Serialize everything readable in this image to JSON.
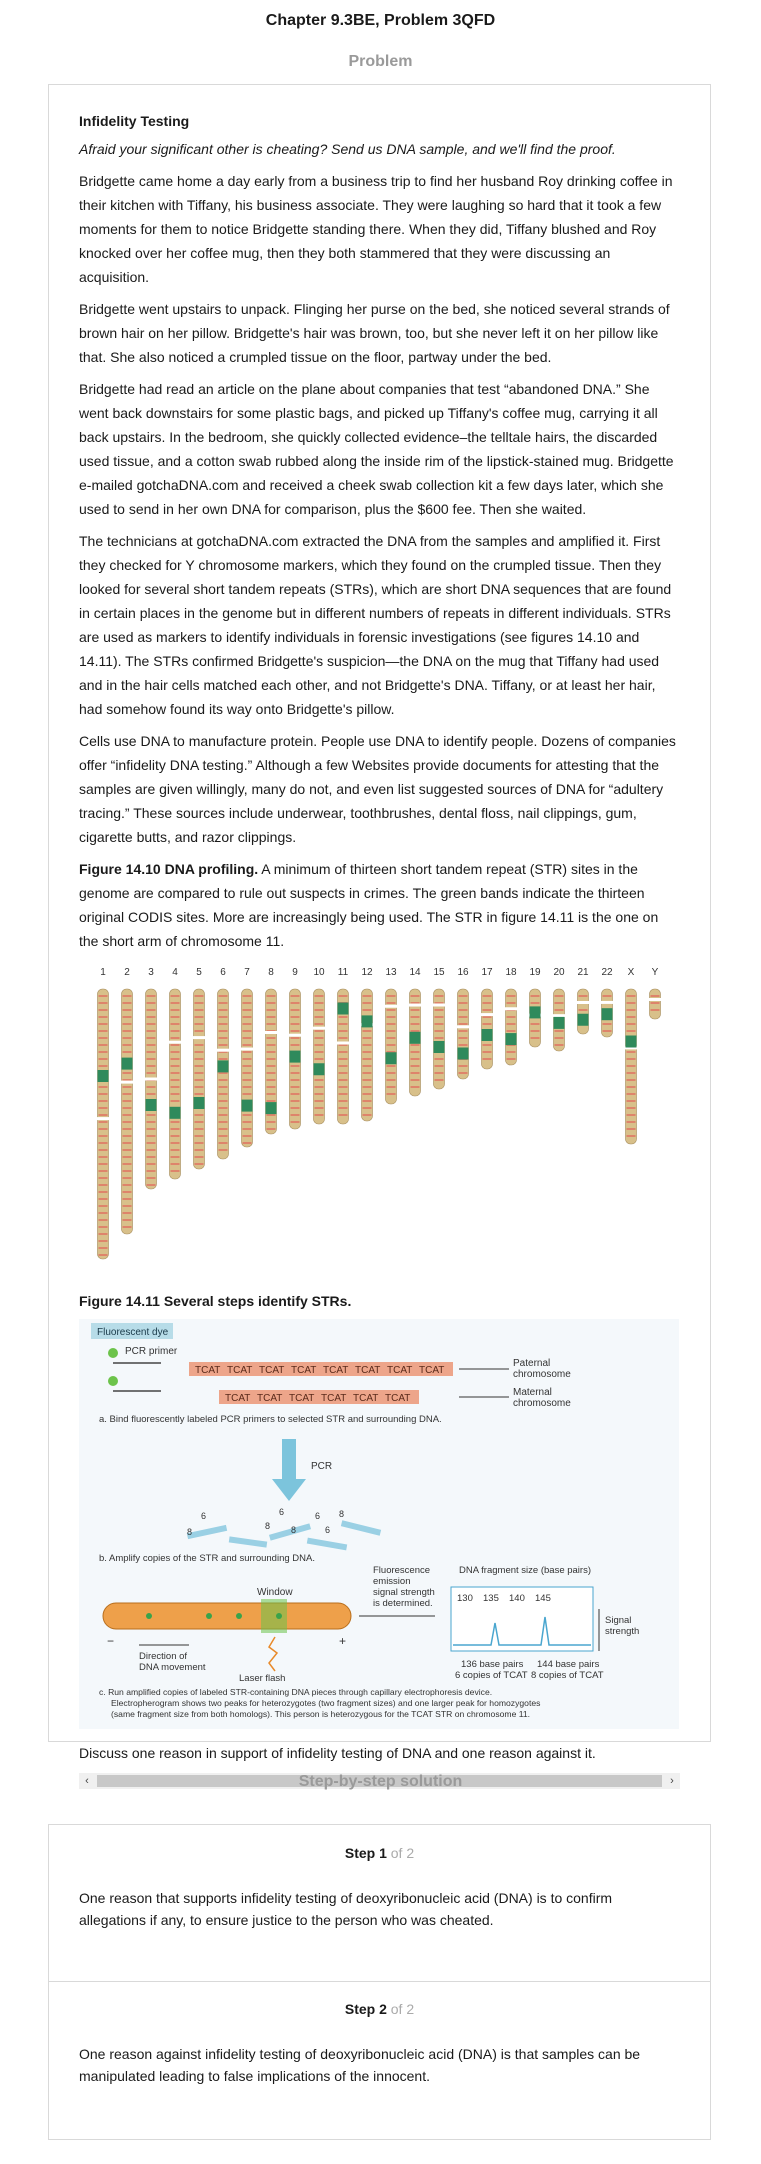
{
  "page_title": "Chapter 9.3BE, Problem 3QFD",
  "problem_label": "Problem",
  "problem": {
    "heading": "Infidelity Testing",
    "tagline": "Afraid your significant other is cheating? Send us DNA sample, and we'll find the proof.",
    "paragraphs": [
      "Bridgette came home a day early from a business trip to find her husband Roy drinking coffee in their kitchen with Tiffany, his business associate. They were laughing so hard that it took a few moments for them to notice Bridgette standing there. When they did, Tiffany blushed and Roy knocked over her coffee mug, then they both stammered that they were discussing an acquisition.",
      "Bridgette went upstairs to unpack. Flinging her purse on the bed, she noticed several strands of brown hair on her pillow. Bridgette's hair was brown, too, but she never left it on her pillow like that. She also noticed a crumpled tissue on the floor, partway under the bed.",
      "Bridgette had read an article on the plane about companies that test “abandoned DNA.” She went back downstairs for some plastic bags, and picked up Tiffany's coffee mug, carrying it all back upstairs. In the bedroom, she quickly collected evidence–the telltale hairs, the discarded used tissue, and a cotton swab rubbed along the inside rim of the lipstick-stained mug. Bridgette e-mailed gotchaDNA.com and received a cheek swab collection kit a few days later, which she used to send in her own DNA for comparison, plus the $600 fee. Then she waited.",
      "The technicians at gotchaDNA.com extracted the DNA from the samples and amplified it. First they checked for Y chromosome markers, which they found on the crumpled tissue. Then they looked for several short tandem repeats (STRs), which are short DNA sequences that are found in certain places in the genome but in different numbers of repeats in different individuals. STRs are used as markers to identify individuals in forensic investigations (see figures 14.10 and 14.11). The STRs confirmed Bridgette's suspicion—the DNA on the mug that Tiffany had used and in the hair cells matched each other, and not Bridgette's DNA. Tiffany, or at least her hair, had somehow found its way onto Bridgette's pillow.",
      "Cells use DNA to manufacture protein. People use DNA to identify people. Dozens of companies offer “infidelity DNA testing.” Although a few Websites provide documents for attesting that the samples are given willingly, many do not, and even list suggested sources of DNA for “adultery tracing.” These sources include underwear, toothbrushes, dental floss, nail clippings, gum, cigarette butts, and razor clippings."
    ],
    "fig10_label": "Figure 14.10 DNA profiling.",
    "fig10_text": " A minimum of thirteen short tandem repeat (STR) sites in the genome are compared to rule out suspects in crimes. The green bands indicate the thirteen original CODIS sites. More are increasingly being used. The STR in figure 14.11 is the one on the short arm of chromosome 11.",
    "chromosome_labels": [
      "1",
      "2",
      "3",
      "4",
      "5",
      "6",
      "7",
      "8",
      "9",
      "10",
      "11",
      "12",
      "13",
      "14",
      "15",
      "16",
      "17",
      "18",
      "19",
      "20",
      "21",
      "22",
      "X",
      "Y"
    ],
    "fig11_caption": "Figure 14.11 Several steps identify STRs.",
    "str_figure": {
      "dye_label": "Fluorescent dye",
      "primer_label": "PCR primer",
      "paternal_repeats": [
        "TCAT",
        "TCAT",
        "TCAT",
        "TCAT",
        "TCAT",
        "TCAT",
        "TCAT",
        "TCAT"
      ],
      "maternal_repeats": [
        "TCAT",
        "TCAT",
        "TCAT",
        "TCAT",
        "TCAT",
        "TCAT"
      ],
      "paternal_label": [
        "Paternal",
        "chromosome"
      ],
      "maternal_label": [
        "Maternal",
        "chromosome"
      ],
      "caption_a": "a. Bind fluorescently labeled PCR primers to selected STR and surrounding DNA.",
      "pcr_label": "PCR",
      "copy_numbers": [
        "6",
        "8",
        "6",
        "8",
        "6",
        "8",
        "8",
        "6"
      ],
      "caption_b": "b. Amplify copies of the STR and surrounding DNA.",
      "window_label": "Window",
      "emission_label": [
        "Fluorescence",
        "emission",
        "signal strength",
        "is determined."
      ],
      "fragment_title": "DNA fragment size (base pairs)",
      "fragment_ticks": [
        "130",
        "135",
        "140",
        "145"
      ],
      "signal_label": [
        "Signal",
        "strength"
      ],
      "direction_label": [
        "Direction of",
        "DNA movement"
      ],
      "laser_label": "Laser flash",
      "minus_sign": "−",
      "plus_sign": "+",
      "peak_left": [
        "136 base pairs",
        "6 copies of TCAT"
      ],
      "peak_right": [
        "144 base pairs",
        "8 copies of TCAT"
      ],
      "caption_c": [
        "c. Run amplified copies of labeled STR-containing DNA pieces through capillary electrophoresis device.",
        "Electropherogram shows two peaks for heterozygotes (two fragment sizes) and one larger peak for homozygotes",
        "(same fragment size from both homologs). This person is heterozygous for the TCAT STR on chromosome 11."
      ]
    },
    "question": "Discuss one reason in support of infidelity testing of DNA and one reason against it.",
    "scroll_left": "‹",
    "scroll_right": "›"
  },
  "solution_label": "Step-by-step solution",
  "steps": [
    {
      "label": "Step 1",
      "of": "of 2",
      "text": "One reason that supports infidelity testing of deoxyribonucleic acid (DNA) is to confirm allegations if any, to ensure justice to the person who was cheated."
    },
    {
      "label": "Step 2",
      "of": "of 2",
      "text": "One reason against infidelity testing of deoxyribonucleic acid (DNA) is that samples can be manipulated leading to false implications of the innocent."
    }
  ],
  "colors": {
    "chromosome_body": "#d8c08a",
    "chromosome_band": "#e07060",
    "codis_band": "#2f8a5c",
    "repeat_fill": "#eda58a",
    "dye_box": "#b7dce8",
    "pcr_arrow": "#7cc4dc",
    "electropherogram": "#4aa6cf"
  }
}
